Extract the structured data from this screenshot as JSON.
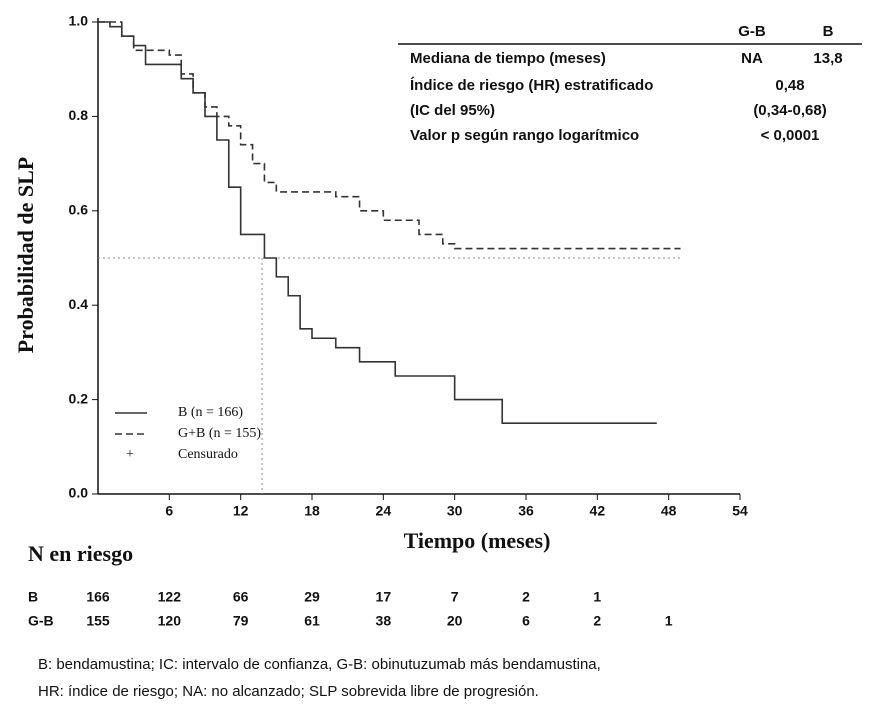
{
  "chart_data": {
    "type": "step",
    "ylabel": "Probabilidad de SLP",
    "xlabel": "Tiempo (meses)",
    "xlim": [
      0,
      54
    ],
    "xticks": [
      6,
      12,
      18,
      24,
      30,
      36,
      42,
      48,
      54
    ],
    "ylim": [
      0,
      1
    ],
    "yticks": [
      {
        "value": 0,
        "label": "0.0"
      },
      {
        "value": 0.2,
        "label": "0.2"
      },
      {
        "value": 0.4,
        "label": "0.4"
      },
      {
        "value": 0.6,
        "label": "0.6"
      },
      {
        "value": 0.8,
        "label": "0.8"
      },
      {
        "value": 1,
        "label": "1.0"
      }
    ],
    "reference_lines": {
      "y": 0.5,
      "x": 13.8
    },
    "censor_label": "Censurado",
    "series": [
      {
        "name": "B (n = 166)",
        "color": "#333333",
        "dash": false,
        "x": [
          0,
          1,
          2,
          3,
          4,
          7,
          8,
          9,
          10,
          11,
          12,
          14,
          15,
          16,
          17,
          18,
          20,
          22,
          25,
          30,
          34,
          47
        ],
        "values": [
          1.0,
          0.99,
          0.97,
          0.95,
          0.91,
          0.88,
          0.85,
          0.8,
          0.75,
          0.65,
          0.55,
          0.5,
          0.46,
          0.42,
          0.35,
          0.33,
          0.31,
          0.28,
          0.25,
          0.2,
          0.15,
          0.15
        ]
      },
      {
        "name": "G+B (n = 155)",
        "color": "#333333",
        "dash": true,
        "x": [
          0,
          2,
          3,
          6,
          7,
          8,
          9,
          10,
          11,
          12,
          13,
          14,
          15,
          20,
          22,
          24,
          27,
          29,
          30,
          49
        ],
        "values": [
          1.0,
          0.97,
          0.94,
          0.93,
          0.89,
          0.85,
          0.82,
          0.8,
          0.78,
          0.74,
          0.7,
          0.66,
          0.64,
          0.63,
          0.6,
          0.58,
          0.55,
          0.53,
          0.52,
          0.52
        ]
      }
    ]
  },
  "stats_table": {
    "columns": [
      "G-B",
      "B"
    ],
    "rows": [
      [
        "Mediana de tiempo (meses)",
        "NA",
        "13,8"
      ],
      [
        "Índice de riesgo (HR) estratificado",
        "0,48"
      ],
      [
        "(IC del 95%)",
        "(0,34-0,68)"
      ],
      [
        "Valor p según rango logarítmico",
        "< 0,0001"
      ]
    ]
  },
  "risk_table": {
    "title": "N en riesgo",
    "rows": [
      {
        "label": "B",
        "values": [
          166,
          122,
          66,
          29,
          17,
          7,
          2,
          1
        ]
      },
      {
        "label": "G-B",
        "values": [
          155,
          120,
          79,
          61,
          38,
          20,
          6,
          2,
          1
        ]
      }
    ]
  },
  "footnote": [
    "B: bendamustina; IC: intervalo de confianza, G-B: obinutuzumab más bendamustina,",
    "HR: índice de riesgo; NA: no alcanzado; SLP sobrevida libre de progresión."
  ]
}
